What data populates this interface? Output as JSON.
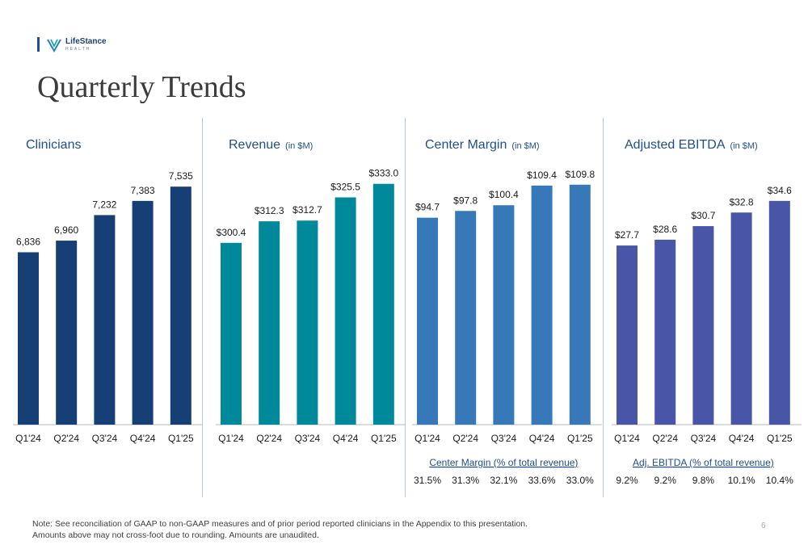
{
  "logo": {
    "name": "LifeStance",
    "sub": "HEALTH"
  },
  "page_title": "Quarterly Trends",
  "colors": {
    "clinicians": "#163f76",
    "revenue": "#00899a",
    "center_margin": "#3778b9",
    "ebitda": "#4955a6",
    "axis": "#b8b8b8",
    "label": "#1a1a1a",
    "title": "#1f4e8c"
  },
  "chart_data": [
    {
      "type": "bar",
      "title": "Clinicians",
      "unit": "",
      "categories": [
        "Q1'24",
        "Q2'24",
        "Q3'24",
        "Q4'24",
        "Q1'25"
      ],
      "values": [
        6836,
        6960,
        7232,
        7383,
        7535
      ],
      "labels": [
        "6,836",
        "6,960",
        "7,232",
        "7,383",
        "7,535"
      ],
      "color": "#163f76"
    },
    {
      "type": "bar",
      "title": "Revenue",
      "unit": "(in $M)",
      "categories": [
        "Q1'24",
        "Q2'24",
        "Q3'24",
        "Q4'24",
        "Q1'25"
      ],
      "values": [
        300.4,
        312.3,
        312.7,
        325.5,
        333.0
      ],
      "labels": [
        "$300.4",
        "$312.3",
        "$312.7",
        "$325.5",
        "$333.0"
      ],
      "color": "#00899a"
    },
    {
      "type": "bar",
      "title": "Center Margin",
      "unit": "(in $M)",
      "categories": [
        "Q1'24",
        "Q2'24",
        "Q3'24",
        "Q4'24",
        "Q1'25"
      ],
      "values": [
        94.7,
        97.8,
        100.4,
        109.4,
        109.8
      ],
      "labels": [
        "$94.7",
        "$97.8",
        "$100.4",
        "$109.4",
        "$109.8"
      ],
      "color": "#3778b9",
      "ratio_title": "Center Margin (% of total revenue)",
      "ratios": [
        "31.5%",
        "31.3%",
        "32.1%",
        "33.6%",
        "33.0%"
      ]
    },
    {
      "type": "bar",
      "title": "Adjusted EBITDA",
      "unit": "(in $M)",
      "categories": [
        "Q1'24",
        "Q2'24",
        "Q3'24",
        "Q4'24",
        "Q1'25"
      ],
      "values": [
        27.7,
        28.6,
        30.7,
        32.8,
        34.6
      ],
      "labels": [
        "$27.7",
        "$28.6",
        "$30.7",
        "$32.8",
        "$34.6"
      ],
      "color": "#4955a6",
      "ratio_title": "Adj. EBITDA (% of total revenue)",
      "ratios": [
        "9.2%",
        "9.2%",
        "9.8%",
        "10.1%",
        "10.4%"
      ]
    }
  ],
  "footnote": "Note:  See reconciliation of GAAP to non-GAAP measures and of prior period reported clinicians in the Appendix to this presentation. Amounts above may not cross-foot due to rounding. Amounts are unaudited.",
  "page_number": "6"
}
